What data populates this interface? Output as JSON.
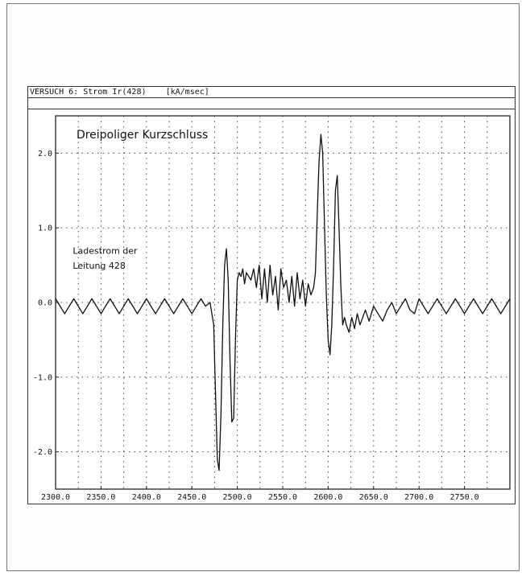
{
  "header": {
    "title": "VERSUCH 6: Strom Ir(428)",
    "units": "[kA/msec]"
  },
  "chart_data": {
    "type": "line",
    "title": "",
    "xlabel": "",
    "ylabel": "",
    "xlim": [
      2300,
      2800
    ],
    "ylim": [
      -2.5,
      2.5
    ],
    "grid": true,
    "x_ticks": [
      2300.0,
      2350.0,
      2400.0,
      2450.0,
      2500.0,
      2550.0,
      2600.0,
      2650.0,
      2700.0,
      2750.0
    ],
    "x_tick_labels": [
      "2300.0",
      "2350.0",
      "2400.0",
      "2450.0",
      "2500.0",
      "2550.0",
      "2600.0",
      "2650.0",
      "2700.0",
      "2750.0"
    ],
    "y_ticks": [
      2.0,
      1.0,
      0.0,
      -1.0,
      -2.0
    ],
    "y_tick_labels": [
      "2.0",
      "1.0",
      "0.0",
      "-1.0",
      "-2.0"
    ],
    "annotations": [
      {
        "text": "Dreipoliger Kurzschluss",
        "x": 2323,
        "y": 2.2,
        "size": "large"
      },
      {
        "text": "Ladestrom der",
        "x": 2319,
        "y": 0.65,
        "size": "small"
      },
      {
        "text": "Leitung 428",
        "x": 2319,
        "y": 0.45,
        "size": "small"
      }
    ],
    "series": [
      {
        "color": "#111111",
        "x": [
          2300,
          2305,
          2310,
          2315,
          2320,
          2325,
          2330,
          2335,
          2340,
          2345,
          2350,
          2355,
          2360,
          2365,
          2370,
          2375,
          2380,
          2385,
          2390,
          2395,
          2400,
          2405,
          2410,
          2415,
          2420,
          2425,
          2430,
          2435,
          2440,
          2445,
          2450,
          2455,
          2460,
          2465,
          2470,
          2474,
          2476,
          2478,
          2480,
          2482,
          2484,
          2486,
          2488,
          2490,
          2492,
          2494,
          2496,
          2498,
          2500,
          2502,
          2504,
          2506,
          2508,
          2510,
          2515,
          2518,
          2521,
          2524,
          2527,
          2530,
          2533,
          2536,
          2539,
          2542,
          2545,
          2548,
          2551,
          2554,
          2557,
          2560,
          2563,
          2566,
          2569,
          2572,
          2575,
          2578,
          2581,
          2584,
          2586,
          2588,
          2590,
          2592,
          2594,
          2596,
          2598,
          2600,
          2602,
          2604,
          2606,
          2608,
          2610,
          2612,
          2614,
          2616,
          2618,
          2620,
          2623,
          2626,
          2629,
          2632,
          2635,
          2638,
          2641,
          2645,
          2650,
          2655,
          2660,
          2665,
          2670,
          2675,
          2680,
          2685,
          2690,
          2695,
          2700,
          2705,
          2710,
          2715,
          2720,
          2725,
          2730,
          2735,
          2740,
          2745,
          2750,
          2755,
          2760,
          2765,
          2770,
          2775,
          2780,
          2785,
          2790,
          2795,
          2800
        ],
        "y": [
          0.05,
          -0.05,
          -0.15,
          -0.05,
          0.05,
          -0.05,
          -0.15,
          -0.05,
          0.05,
          -0.05,
          -0.15,
          -0.05,
          0.05,
          -0.05,
          -0.15,
          -0.05,
          0.05,
          -0.05,
          -0.15,
          -0.05,
          0.05,
          -0.05,
          -0.15,
          -0.05,
          0.05,
          -0.05,
          -0.15,
          -0.05,
          0.05,
          -0.05,
          -0.15,
          -0.05,
          0.05,
          -0.05,
          0.0,
          -0.3,
          -1.2,
          -2.1,
          -2.25,
          -1.5,
          -0.3,
          0.5,
          0.72,
          0.3,
          -0.8,
          -1.6,
          -1.55,
          -0.5,
          0.3,
          0.4,
          0.35,
          0.45,
          0.25,
          0.4,
          0.3,
          0.45,
          0.2,
          0.5,
          0.05,
          0.45,
          0.0,
          0.5,
          0.1,
          0.35,
          -0.1,
          0.45,
          0.2,
          0.3,
          0.0,
          0.35,
          -0.05,
          0.4,
          0.05,
          0.3,
          -0.05,
          0.25,
          0.1,
          0.2,
          0.4,
          1.2,
          1.9,
          2.25,
          2.0,
          1.0,
          0.1,
          -0.5,
          -0.7,
          -0.3,
          0.5,
          1.5,
          1.7,
          1.0,
          0.2,
          -0.3,
          -0.2,
          -0.3,
          -0.4,
          -0.2,
          -0.35,
          -0.15,
          -0.3,
          -0.2,
          -0.1,
          -0.25,
          -0.05,
          -0.15,
          -0.25,
          -0.1,
          0.0,
          -0.15,
          -0.05,
          0.05,
          -0.1,
          -0.15,
          0.05,
          -0.05,
          -0.15,
          -0.05,
          0.05,
          -0.05,
          -0.15,
          -0.05,
          0.05,
          -0.05,
          -0.15,
          -0.05,
          0.05,
          -0.05,
          -0.15,
          -0.05,
          0.05,
          -0.05,
          -0.15,
          -0.05,
          0.05
        ]
      }
    ]
  }
}
